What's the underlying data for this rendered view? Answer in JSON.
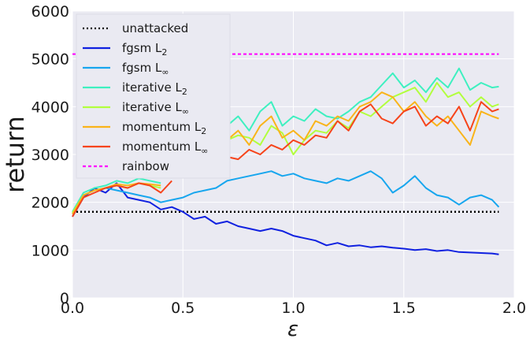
{
  "chart_data": {
    "type": "line",
    "xlabel": "ε",
    "ylabel": "return",
    "xlim": [
      0.0,
      2.0
    ],
    "ylim": [
      0,
      6000
    ],
    "grid": true,
    "legend_position": "top-left",
    "x_ticks": [
      "0.0",
      "0.5",
      "1.0",
      "1.5",
      "2.0"
    ],
    "y_ticks": [
      "0",
      "1000",
      "2000",
      "3000",
      "4000",
      "5000",
      "6000"
    ],
    "series": [
      {
        "name": "unattacked",
        "color": "#000000",
        "dash": "dotted",
        "x": [
          0.0,
          1.93
        ],
        "y": [
          1800,
          1800
        ]
      },
      {
        "name": "fgsm L2",
        "color": "#1021e0",
        "dash": "solid",
        "x": [
          0.0,
          0.05,
          0.1,
          0.15,
          0.2,
          0.25,
          0.3,
          0.35,
          0.4,
          0.45,
          0.5,
          0.55,
          0.6,
          0.65,
          0.7,
          0.75,
          0.8,
          0.85,
          0.9,
          0.95,
          1.0,
          1.05,
          1.1,
          1.15,
          1.2,
          1.25,
          1.3,
          1.35,
          1.4,
          1.45,
          1.5,
          1.55,
          1.6,
          1.65,
          1.7,
          1.75,
          1.8,
          1.85,
          1.9,
          1.93
        ],
        "y": [
          1700,
          2100,
          2300,
          2200,
          2400,
          2100,
          2050,
          2000,
          1850,
          1900,
          1800,
          1650,
          1700,
          1550,
          1600,
          1500,
          1450,
          1400,
          1450,
          1400,
          1300,
          1250,
          1200,
          1100,
          1150,
          1080,
          1100,
          1060,
          1080,
          1050,
          1030,
          1000,
          1020,
          980,
          1000,
          960,
          950,
          940,
          930,
          910
        ]
      },
      {
        "name": "fgsm L∞",
        "color": "#17a6ee",
        "dash": "solid",
        "x": [
          0.0,
          0.05,
          0.1,
          0.15,
          0.2,
          0.25,
          0.3,
          0.35,
          0.4,
          0.45,
          0.5,
          0.55,
          0.6,
          0.65,
          0.7,
          0.75,
          0.8,
          0.85,
          0.9,
          0.95,
          1.0,
          1.05,
          1.1,
          1.15,
          1.2,
          1.25,
          1.3,
          1.35,
          1.4,
          1.45,
          1.5,
          1.55,
          1.6,
          1.65,
          1.7,
          1.75,
          1.8,
          1.85,
          1.9,
          1.93
        ],
        "y": [
          1750,
          2150,
          2250,
          2300,
          2250,
          2200,
          2150,
          2100,
          2000,
          2050,
          2100,
          2200,
          2250,
          2300,
          2450,
          2500,
          2550,
          2600,
          2650,
          2550,
          2600,
          2500,
          2450,
          2400,
          2500,
          2450,
          2550,
          2650,
          2500,
          2200,
          2350,
          2550,
          2300,
          2150,
          2100,
          1950,
          2100,
          2150,
          2050,
          1900
        ]
      },
      {
        "name": "iterative L2",
        "color": "#3ef0c0",
        "dash": "solid",
        "x": [
          0.0,
          0.05,
          0.1,
          0.15,
          0.2,
          0.25,
          0.3,
          0.35,
          0.4,
          0.45,
          0.5,
          0.55,
          0.6,
          0.65,
          0.7,
          0.75,
          0.8,
          0.85,
          0.9,
          0.95,
          1.0,
          1.05,
          1.1,
          1.15,
          1.2,
          1.25,
          1.3,
          1.35,
          1.4,
          1.45,
          1.5,
          1.55,
          1.6,
          1.65,
          1.7,
          1.75,
          1.8,
          1.85,
          1.9,
          1.93
        ],
        "y": [
          1800,
          2200,
          2300,
          2350,
          2450,
          2400,
          2500,
          2450,
          2400,
          null,
          null,
          null,
          null,
          null,
          3600,
          3800,
          3500,
          3900,
          4100,
          3600,
          3800,
          3700,
          3950,
          3800,
          3750,
          3900,
          4100,
          4200,
          4450,
          4700,
          4400,
          4550,
          4300,
          4600,
          4400,
          4800,
          4350,
          4500,
          4400,
          4420
        ]
      },
      {
        "name": "iterative L∞",
        "color": "#b2ff3e",
        "dash": "solid",
        "x": [
          0.0,
          0.05,
          0.1,
          0.15,
          0.2,
          0.25,
          0.3,
          0.35,
          0.4,
          0.45,
          0.5,
          0.55,
          0.6,
          0.65,
          0.7,
          0.75,
          0.8,
          0.85,
          0.9,
          0.95,
          1.0,
          1.05,
          1.1,
          1.15,
          1.2,
          1.25,
          1.3,
          1.35,
          1.4,
          1.45,
          1.5,
          1.55,
          1.6,
          1.65,
          1.7,
          1.75,
          1.8,
          1.85,
          1.9,
          1.93
        ],
        "y": [
          1780,
          2150,
          2250,
          2300,
          2350,
          2300,
          2400,
          2350,
          2300,
          null,
          null,
          null,
          null,
          null,
          3300,
          3400,
          3350,
          3200,
          3600,
          3450,
          3000,
          3300,
          3500,
          3450,
          3700,
          3550,
          3900,
          3800,
          4000,
          4200,
          4300,
          4400,
          4100,
          4500,
          4200,
          4300,
          4000,
          4200,
          4000,
          4050
        ]
      },
      {
        "name": "momentum L2",
        "color": "#f9b41a",
        "dash": "solid",
        "x": [
          0.0,
          0.05,
          0.1,
          0.15,
          0.2,
          0.25,
          0.3,
          0.35,
          0.4,
          0.45,
          0.5,
          0.55,
          0.6,
          0.65,
          0.7,
          0.75,
          0.8,
          0.85,
          0.9,
          0.95,
          1.0,
          1.05,
          1.1,
          1.15,
          1.2,
          1.25,
          1.3,
          1.35,
          1.4,
          1.45,
          1.5,
          1.55,
          1.6,
          1.65,
          1.7,
          1.75,
          1.8,
          1.85,
          1.9,
          1.93
        ],
        "y": [
          1750,
          2150,
          2250,
          2300,
          2380,
          2350,
          2400,
          2380,
          2350,
          null,
          null,
          null,
          null,
          null,
          3300,
          3500,
          3200,
          3600,
          3800,
          3350,
          3500,
          3300,
          3700,
          3600,
          3800,
          3700,
          4000,
          4100,
          4300,
          4200,
          3900,
          4100,
          3800,
          3600,
          3800,
          3500,
          3200,
          3900,
          3800,
          3750
        ]
      },
      {
        "name": "momentum L∞",
        "color": "#f6441b",
        "dash": "solid",
        "x": [
          0.0,
          0.05,
          0.1,
          0.15,
          0.2,
          0.25,
          0.3,
          0.35,
          0.4,
          0.45,
          0.5,
          0.55,
          0.6,
          0.65,
          0.7,
          0.75,
          0.8,
          0.85,
          0.9,
          0.95,
          1.0,
          1.05,
          1.1,
          1.15,
          1.2,
          1.25,
          1.3,
          1.35,
          1.4,
          1.45,
          1.5,
          1.55,
          1.6,
          1.65,
          1.7,
          1.75,
          1.8,
          1.85,
          1.9,
          1.93
        ],
        "y": [
          1700,
          2100,
          2200,
          2300,
          2350,
          2300,
          2400,
          2350,
          2200,
          2450,
          null,
          null,
          null,
          null,
          2950,
          2900,
          3100,
          3000,
          3200,
          3100,
          3300,
          3200,
          3400,
          3350,
          3700,
          3500,
          3900,
          4050,
          3750,
          3650,
          3900,
          4000,
          3600,
          3800,
          3650,
          4000,
          3500,
          4100,
          3900,
          3950
        ]
      },
      {
        "name": "rainbow",
        "color": "#ff00ff",
        "dash": "dashed",
        "x": [
          0.0,
          1.93
        ],
        "y": [
          5100,
          5100
        ]
      }
    ]
  },
  "legend": {
    "items": [
      {
        "text": "unattacked",
        "sub": ""
      },
      {
        "text": "fgsm L",
        "sub": "2"
      },
      {
        "text": "fgsm L",
        "sub": "∞"
      },
      {
        "text": "iterative L",
        "sub": "2"
      },
      {
        "text": "iterative L",
        "sub": "∞"
      },
      {
        "text": "momentum L",
        "sub": "2"
      },
      {
        "text": "momentum L",
        "sub": "∞"
      },
      {
        "text": "rainbow",
        "sub": ""
      }
    ]
  },
  "colors": {
    "plot_bg": "#eaeaf2",
    "grid": "#ffffff"
  }
}
